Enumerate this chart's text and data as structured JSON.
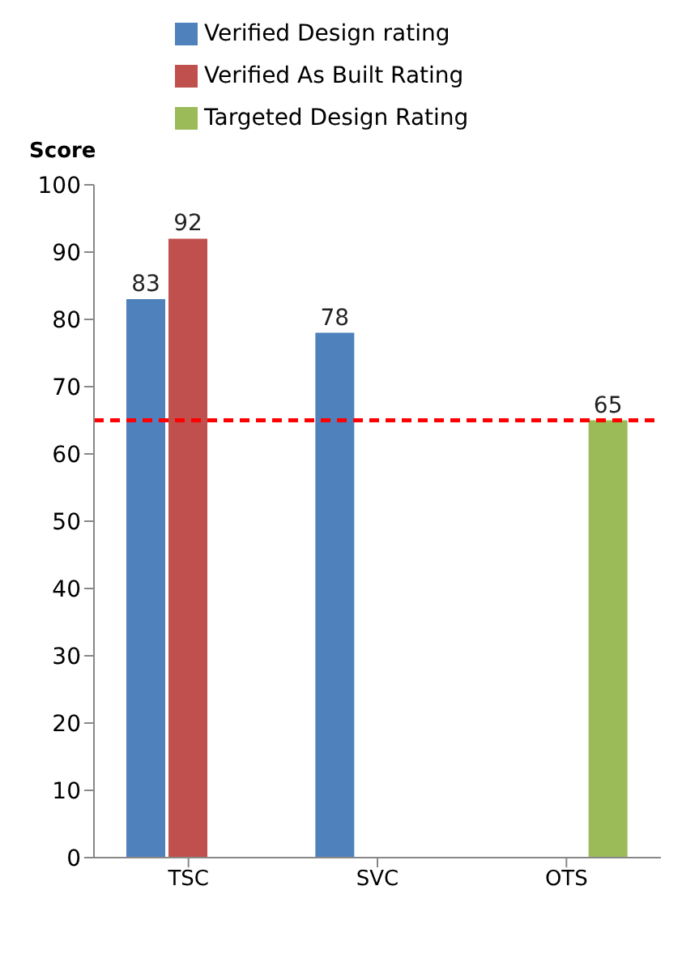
{
  "chart_data": {
    "type": "bar",
    "ylabel": "Score",
    "categories": [
      "TSC",
      "SVC",
      "OTS"
    ],
    "series": [
      {
        "name": "Verified Design rating",
        "color": "#4f81bd",
        "values": [
          83,
          78,
          null
        ]
      },
      {
        "name": "Verified As Built Rating",
        "color": "#c0504d",
        "values": [
          92,
          null,
          null
        ]
      },
      {
        "name": "Targeted Design Rating",
        "color": "#9bbb59",
        "values": [
          null,
          null,
          65
        ]
      }
    ],
    "ylim": [
      0,
      100
    ],
    "yticks": [
      0,
      10,
      20,
      30,
      40,
      50,
      60,
      70,
      80,
      90,
      100
    ],
    "ref_lines": [
      {
        "axis": "y",
        "value": 65,
        "color": "#ff0000",
        "line_style": "dashed"
      }
    ],
    "data_labels": true,
    "grid": false,
    "legend": "top"
  }
}
